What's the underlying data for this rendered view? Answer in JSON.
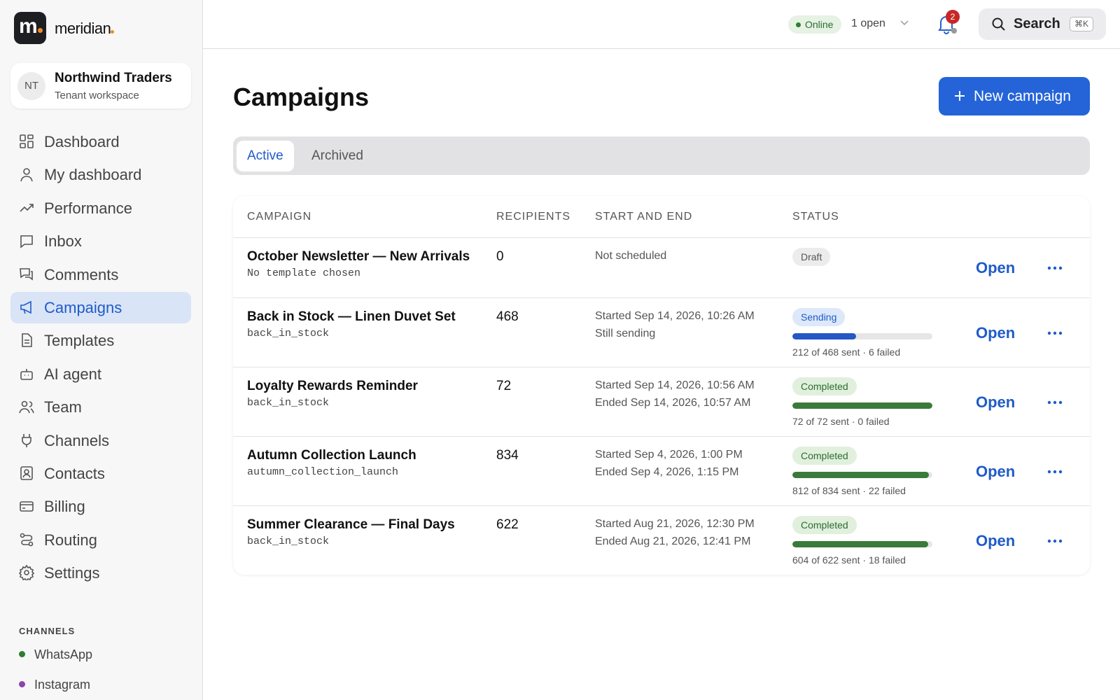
{
  "sidebar": {
    "logo_mark": "m",
    "brand": "meridian",
    "workspace": {
      "initials": "NT",
      "name": "Northwind Traders",
      "subtitle": "Tenant workspace"
    },
    "nav": [
      "Dashboard",
      "My dashboard",
      "Performance",
      "Inbox",
      "Comments",
      "Campaigns",
      "Templates",
      "AI agent",
      "Team",
      "Channels",
      "Contacts",
      "Billing",
      "Routing",
      "Settings"
    ],
    "active_nav": 5,
    "channels_heading": "CHANNELS",
    "channels": [
      {
        "name": "WhatsApp",
        "color": "#2e7d32"
      },
      {
        "name": "Instagram",
        "color": "#8e44ad"
      }
    ]
  },
  "topbar": {
    "status": "Online",
    "open_count": "1 open",
    "notifications": 2,
    "search": "Search",
    "shortcut": "⌘K"
  },
  "header": {
    "title": "Campaigns",
    "new_button": "New campaign"
  },
  "tabs": {
    "items": [
      "Active",
      "Archived"
    ],
    "selected": 0
  },
  "table": {
    "columns": [
      "CAMPAIGN",
      "RECIPIENTS",
      "START AND END",
      "STATUS"
    ],
    "open_label": "Open",
    "rows": [
      {
        "name": "October Newsletter — New Arrivals",
        "template": "No template chosen",
        "recipients": 0,
        "schedule": [
          "Not scheduled"
        ],
        "status": "Draft"
      },
      {
        "name": "Back in Stock — Linen Duvet Set",
        "template": "back_in_stock",
        "recipients": 468,
        "schedule": [
          "Started Sep 14, 2026, 10:26 AM",
          "Still sending"
        ],
        "status": "Sending",
        "progress": {
          "sent": 212,
          "label": "212 of 468 sent · 6 failed"
        }
      },
      {
        "name": "Loyalty Rewards Reminder",
        "template": "back_in_stock",
        "recipients": 72,
        "schedule": [
          "Started Sep 14, 2026, 10:56 AM",
          "Ended Sep 14, 2026, 10:57 AM"
        ],
        "status": "Completed",
        "progress": {
          "sent": 72,
          "label": "72 of 72 sent · 0 failed"
        }
      },
      {
        "name": "Autumn Collection Launch",
        "template": "autumn_collection_launch",
        "recipients": 834,
        "schedule": [
          "Started Sep 4, 2026, 1:00 PM",
          "Ended Sep 4, 2026, 1:15 PM"
        ],
        "status": "Completed",
        "progress": {
          "sent": 812,
          "label": "812 of 834 sent · 22 failed"
        }
      },
      {
        "name": "Summer Clearance — Final Days",
        "template": "back_in_stock",
        "recipients": 622,
        "schedule": [
          "Started Aug 21, 2026, 12:30 PM",
          "Ended Aug 21, 2026, 12:41 PM"
        ],
        "status": "Completed",
        "progress": {
          "sent": 604,
          "label": "604 of 622 sent · 18 failed"
        }
      }
    ]
  }
}
